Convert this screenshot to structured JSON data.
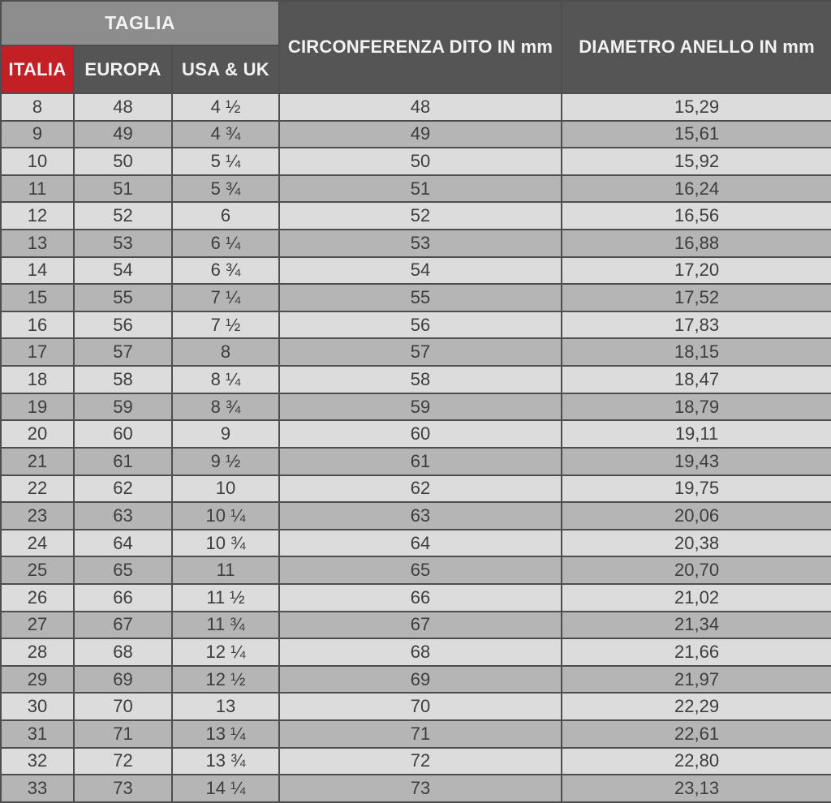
{
  "header": {
    "group_label": "TAGLIA",
    "col_italia": "ITALIA",
    "col_europa": "EUROPA",
    "col_usa_uk": "USA & UK",
    "col_circonferenza": "CIRCONFERENZA DITO IN mm",
    "col_diametro": "DIAMETRO ANELLO IN mm"
  },
  "colors": {
    "group_header_bg": "#8d8d8d",
    "italia_header_bg": "#c32026",
    "dark_header_bg": "#555555",
    "row_light_bg": "#dcdcdc",
    "row_dark_bg": "#b5b5b5",
    "border": "#4e4e4e",
    "header_text": "#f2f2f2",
    "cell_text": "#3d3d3d"
  },
  "chart_data": {
    "type": "table",
    "columns": [
      "ITALIA",
      "EUROPA",
      "USA & UK",
      "CIRCONFERENZA DITO IN mm",
      "DIAMETRO ANELLO IN mm"
    ],
    "column_keys": [
      "italia",
      "europa",
      "usa-uk",
      "circonferenza-mm",
      "diametro-mm"
    ],
    "column_group": {
      "label": "TAGLIA",
      "spans": [
        "ITALIA",
        "EUROPA",
        "USA & UK"
      ]
    },
    "rows": [
      [
        "8",
        "48",
        "4 ½",
        "48",
        "15,29"
      ],
      [
        "9",
        "49",
        "4 ¾",
        "49",
        "15,61"
      ],
      [
        "10",
        "50",
        "5 ¼",
        "50",
        "15,92"
      ],
      [
        "11",
        "51",
        "5 ¾",
        "51",
        "16,24"
      ],
      [
        "12",
        "52",
        "6",
        "52",
        "16,56"
      ],
      [
        "13",
        "53",
        "6 ¼",
        "53",
        "16,88"
      ],
      [
        "14",
        "54",
        "6 ¾",
        "54",
        "17,20"
      ],
      [
        "15",
        "55",
        "7 ¼",
        "55",
        "17,52"
      ],
      [
        "16",
        "56",
        "7 ½",
        "56",
        "17,83"
      ],
      [
        "17",
        "57",
        "8",
        "57",
        "18,15"
      ],
      [
        "18",
        "58",
        "8 ¼",
        "58",
        "18,47"
      ],
      [
        "19",
        "59",
        "8 ¾",
        "59",
        "18,79"
      ],
      [
        "20",
        "60",
        "9",
        "60",
        "19,11"
      ],
      [
        "21",
        "61",
        "9 ½",
        "61",
        "19,43"
      ],
      [
        "22",
        "62",
        "10",
        "62",
        "19,75"
      ],
      [
        "23",
        "63",
        "10 ¼",
        "63",
        "20,06"
      ],
      [
        "24",
        "64",
        "10 ¾",
        "64",
        "20,38"
      ],
      [
        "25",
        "65",
        "11",
        "65",
        "20,70"
      ],
      [
        "26",
        "66",
        "11 ½",
        "66",
        "21,02"
      ],
      [
        "27",
        "67",
        "11 ¾",
        "67",
        "21,34"
      ],
      [
        "28",
        "68",
        "12 ¼",
        "68",
        "21,66"
      ],
      [
        "29",
        "69",
        "12 ½",
        "69",
        "21,97"
      ],
      [
        "30",
        "70",
        "13",
        "70",
        "22,29"
      ],
      [
        "31",
        "71",
        "13 ¼",
        "71",
        "22,61"
      ],
      [
        "32",
        "72",
        "13 ¾",
        "72",
        "22,80"
      ],
      [
        "33",
        "73",
        "14 ¼",
        "73",
        "23,13"
      ]
    ]
  }
}
